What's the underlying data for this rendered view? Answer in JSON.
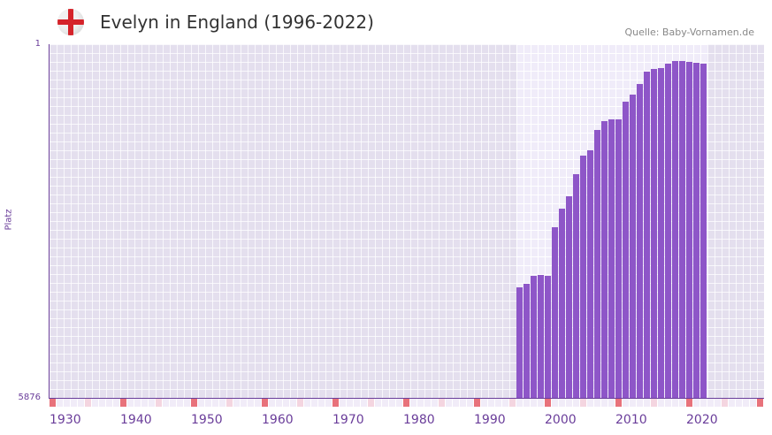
{
  "header": {
    "title": "Evelyn in England (1996-2022)",
    "source": "Quelle: Baby-Vornamen.de",
    "flag_icon": "england-flag-icon"
  },
  "chart_data": {
    "type": "bar",
    "title": "Evelyn in England (1996-2022)",
    "xlabel": "",
    "ylabel": "Platz",
    "y_top_label": "1",
    "y_bottom_label": "5876",
    "xlim": [
      1930,
      2030
    ],
    "x_ticks": [
      "1930",
      "1940",
      "1950",
      "1960",
      "1970",
      "1980",
      "1990",
      "2000",
      "2010",
      "2020"
    ],
    "highlight_range": [
      1996,
      2022
    ],
    "value_note": "bar level as percent of axis height (100 = Platz 1)",
    "x": [
      1996,
      1997,
      1998,
      1999,
      2000,
      2001,
      2002,
      2003,
      2004,
      2005,
      2006,
      2007,
      2008,
      2009,
      2010,
      2011,
      2012,
      2013,
      2014,
      2015,
      2016,
      2017,
      2018,
      2019,
      2020,
      2021,
      2022
    ],
    "values": [
      31.3,
      32.3,
      34.5,
      34.8,
      34.5,
      48.3,
      53.5,
      57,
      63.3,
      68.5,
      70,
      75.8,
      78.3,
      78.8,
      78.8,
      83.8,
      85.8,
      88.8,
      92.3,
      93,
      93.3,
      94.5,
      95.3,
      95.3,
      95,
      94.8,
      94.5
    ],
    "colors": {
      "bar": "#8e56c8",
      "decade_marker": "#e8727b",
      "half_decade_marker": "#f4d5e0",
      "axis": "#6a3d9a"
    }
  }
}
